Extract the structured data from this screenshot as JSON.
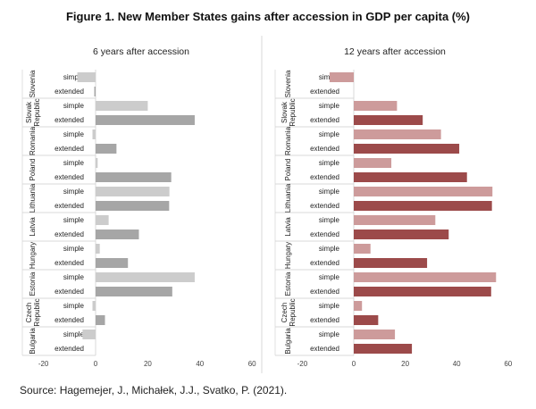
{
  "title": "Figure 1. New Member States gains after accession in GDP per capita (%)",
  "source": "Source: Hagemejer, J., Michałek, J.J., Svatko, P. (2021).",
  "chart_data": [
    {
      "type": "bar",
      "orientation": "horizontal",
      "title": "6 years after accession",
      "categories": [
        "Slovenia",
        "Slovak Republic",
        "Romania",
        "Poland",
        "Lithuania",
        "Latvia",
        "Hungary",
        "Estonia",
        "Czech Republic",
        "Bulgaria"
      ],
      "series": [
        {
          "name": "simple",
          "values": [
            -7,
            20,
            -1.2,
            0.8,
            28.3,
            5,
            1.6,
            38,
            -1.2,
            -5
          ],
          "color": "#cccccc"
        },
        {
          "name": "extended",
          "values": [
            -0.5,
            38,
            8,
            29,
            28.2,
            16.6,
            12.4,
            29.4,
            3.6,
            0
          ],
          "color": "#a6a6a6"
        }
      ],
      "xlim": [
        -20,
        60
      ],
      "xticks": [
        -20,
        0,
        20,
        40,
        60
      ],
      "grid": false
    },
    {
      "type": "bar",
      "orientation": "horizontal",
      "title": "12 years after accession",
      "categories": [
        "Slovenia",
        "Slovak Republic",
        "Romania",
        "Poland",
        "Lithuania",
        "Latvia",
        "Hungary",
        "Estonia",
        "Czech Republic",
        "Bulgaria"
      ],
      "series": [
        {
          "name": "simple",
          "values": [
            -9.4,
            16.8,
            33.9,
            14.6,
            53.9,
            31.7,
            6.5,
            55.3,
            3.2,
            16
          ],
          "color": "#cd9b9b"
        },
        {
          "name": "extended",
          "values": [
            0,
            26.8,
            41,
            44,
            53.7,
            36.9,
            28.5,
            53.4,
            9.5,
            22.6
          ],
          "color": "#9c4a4a"
        }
      ],
      "xlim": [
        -20,
        60
      ],
      "xticks": [
        -20,
        0,
        20,
        40,
        60
      ],
      "grid": false
    }
  ]
}
